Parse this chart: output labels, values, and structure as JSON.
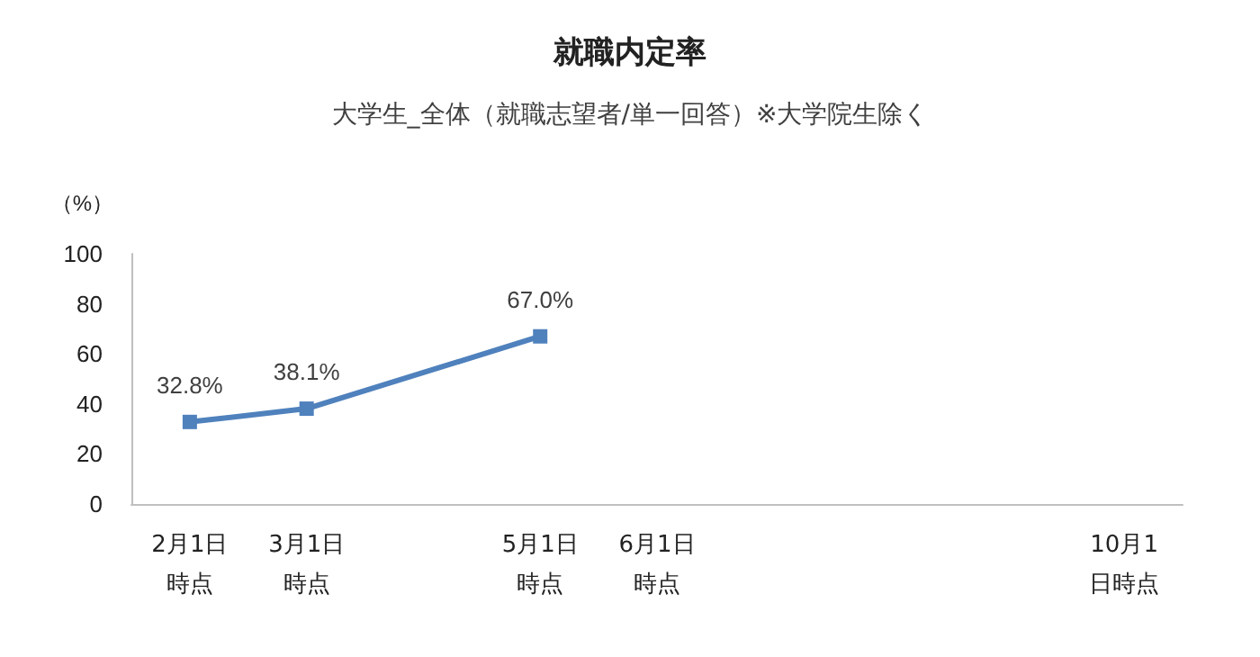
{
  "chart_data": {
    "type": "line",
    "title": "就職内定率",
    "subtitle": "大学生_全体（就職志望者/単一回答）※大学院生除く",
    "ylabel": "（%）",
    "categories": [
      "2月1日時点",
      "3月1日時点",
      null,
      "5月1日時点",
      "6月1日時点",
      null,
      null,
      null,
      "10月1日時点"
    ],
    "series": [
      {
        "color": "#4f81bd",
        "values": [
          32.8,
          38.1,
          null,
          67.0,
          null,
          null,
          null,
          null,
          null
        ],
        "value_labels": [
          "32.8%",
          "38.1%",
          null,
          "67.0%",
          null,
          null,
          null,
          null,
          null
        ]
      }
    ],
    "ylim": [
      0,
      100
    ],
    "yticks": [
      0,
      20,
      40,
      60,
      80,
      100
    ],
    "grid": false,
    "marker": "square",
    "line_style": "solid"
  }
}
